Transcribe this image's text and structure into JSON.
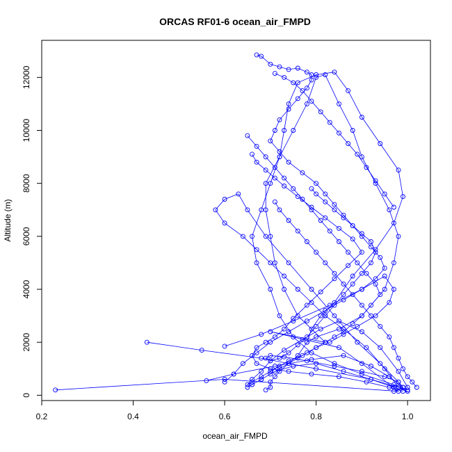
{
  "chart_data": {
    "type": "line",
    "title": "ORCAS RF01-6 ocean_air_FMPD",
    "xlabel": "ocean_air_FMPD",
    "ylabel": "Altitude (m)",
    "xlim": [
      0.2,
      1.05
    ],
    "ylim": [
      -200,
      13400
    ],
    "xticks": [
      "0.2",
      "0.4",
      "0.6",
      "0.8",
      "1.0"
    ],
    "xtick_values": [
      0.2,
      0.4,
      0.6,
      0.8,
      1.0
    ],
    "yticks": [
      "0",
      "2000",
      "4000",
      "6000",
      "8000",
      "10000",
      "12000"
    ],
    "ytick_values": [
      0,
      2000,
      4000,
      6000,
      8000,
      10000,
      12000
    ],
    "grid": false,
    "legend": "none",
    "series_color": "#0000ff",
    "marker": "open-circle",
    "series": [
      {
        "x": [
          0.23,
          0.6,
          0.98,
          0.9,
          0.85,
          0.7,
          0.82,
          0.76,
          0.73,
          0.71,
          0.7,
          0.69,
          0.69,
          0.72,
          0.73,
          0.74,
          0.76,
          0.8,
          0.84,
          0.87,
          0.9,
          0.94,
          0.98,
          0.99,
          0.97,
          0.93,
          0.88,
          0.84,
          0.81,
          0.79,
          0.78,
          0.76,
          0.74,
          0.72,
          0.71,
          0.7,
          0.7,
          0.69
        ],
        "y": [
          200,
          600,
          150,
          1200,
          1800,
          2400,
          2000,
          3000,
          4000,
          5000,
          6000,
          7000,
          8000,
          9000,
          10000,
          11000,
          11800,
          12100,
          12200,
          11500,
          10500,
          9500,
          8500,
          7500,
          6500,
          5500,
          4500,
          3500,
          3000,
          2500,
          2000,
          1500,
          1200,
          900,
          700,
          500,
          300,
          200
        ]
      },
      {
        "x": [
          0.43,
          0.55,
          0.68,
          0.8,
          0.92,
          1.0,
          0.97,
          0.9,
          0.84,
          0.79,
          0.75,
          0.72,
          0.7,
          0.67,
          0.66,
          0.68,
          0.7,
          0.72,
          0.75,
          0.78,
          0.8,
          0.82,
          0.85,
          0.88,
          0.9,
          0.93,
          0.96,
          0.98,
          0.97,
          0.95,
          0.9,
          0.85,
          0.8,
          0.78
        ],
        "y": [
          2000,
          1700,
          1400,
          1000,
          600,
          200,
          400,
          800,
          1200,
          1600,
          2200,
          3000,
          4000,
          5000,
          6000,
          7000,
          8000,
          9000,
          10000,
          11000,
          12000,
          12100,
          11000,
          10000,
          9000,
          8000,
          7000,
          6000,
          5000,
          4000,
          3000,
          2500,
          2200,
          2000
        ]
      },
      {
        "x": [
          0.56,
          0.62,
          0.71,
          0.79,
          0.86,
          0.92,
          0.96,
          0.99,
          0.98,
          0.94,
          0.89,
          0.84,
          0.79,
          0.74,
          0.69,
          0.65,
          0.63,
          0.6,
          0.58,
          0.6,
          0.64,
          0.67,
          0.7,
          0.73,
          0.76,
          0.79,
          0.82,
          0.86,
          0.91,
          0.95,
          0.98
        ],
        "y": [
          550,
          800,
          1100,
          1350,
          1500,
          1100,
          700,
          300,
          500,
          1200,
          2000,
          3000,
          4000,
          5000,
          6000,
          7000,
          7600,
          7400,
          7000,
          6500,
          6000,
          5500,
          5000,
          4500,
          4000,
          3500,
          3000,
          2500,
          1800,
          1000,
          300
        ]
      },
      {
        "x": [
          0.6,
          0.68,
          0.75,
          0.83,
          0.9,
          0.95,
          0.97,
          0.96,
          0.93,
          0.89,
          0.86,
          0.83,
          0.8,
          0.77,
          0.74,
          0.72,
          0.7,
          0.68,
          0.66,
          0.65,
          0.66,
          0.68,
          0.7,
          0.73,
          0.77,
          0.81,
          0.85,
          0.9,
          0.94,
          0.98,
          1.0
        ],
        "y": [
          1850,
          2300,
          2800,
          3400,
          4000,
          4500,
          4000,
          3500,
          3000,
          2600,
          2300,
          2000,
          1800,
          1500,
          1300,
          1100,
          900,
          700,
          500,
          400,
          600,
          900,
          1300,
          1700,
          2100,
          2500,
          2800,
          2400,
          1800,
          900,
          300
        ]
      },
      {
        "x": [
          0.65,
          0.67,
          0.69,
          0.71,
          0.73,
          0.75,
          0.77,
          0.79,
          0.81,
          0.83,
          0.85,
          0.87,
          0.89,
          0.91,
          0.93,
          0.94,
          0.92,
          0.9,
          0.88,
          0.86,
          0.84,
          0.82,
          0.8,
          0.78,
          0.76,
          0.74,
          0.72,
          0.7,
          0.68,
          0.66,
          0.65,
          0.66,
          0.68,
          0.71,
          0.75,
          0.8,
          0.86,
          0.92,
          0.97,
          1.0
        ],
        "y": [
          9800,
          9400,
          9000,
          8600,
          8200,
          7800,
          7400,
          7000,
          6600,
          6200,
          5800,
          5400,
          5000,
          4600,
          4200,
          3800,
          3400,
          3000,
          2700,
          2400,
          2200,
          2000,
          1800,
          1600,
          1400,
          1200,
          1000,
          800,
          600,
          400,
          300,
          400,
          600,
          900,
          1100,
          1200,
          900,
          600,
          300,
          150
        ]
      },
      {
        "x": [
          0.67,
          0.68,
          0.7,
          0.72,
          0.74,
          0.76,
          0.78,
          0.79,
          0.79,
          0.78,
          0.76,
          0.74,
          0.72,
          0.71,
          0.7,
          0.72,
          0.74,
          0.77,
          0.8,
          0.82,
          0.84,
          0.86,
          0.88,
          0.9,
          0.92,
          0.94,
          0.95,
          0.93,
          0.9,
          0.86,
          0.82,
          0.78,
          0.74,
          0.7,
          0.67,
          0.64,
          0.62,
          0.6
        ],
        "y": [
          12850,
          12800,
          12500,
          12400,
          12300,
          12350,
          12200,
          12100,
          11900,
          11600,
          11200,
          10800,
          10400,
          10000,
          9600,
          9200,
          8800,
          8400,
          8000,
          7600,
          7200,
          6800,
          6400,
          6000,
          5600,
          5200,
          4800,
          4400,
          4000,
          3600,
          3200,
          2800,
          2400,
          2000,
          1600,
          1200,
          800,
          500
        ]
      },
      {
        "x": [
          0.79,
          0.8,
          0.82,
          0.84,
          0.86,
          0.88,
          0.9,
          0.92,
          0.93,
          0.92,
          0.9,
          0.88,
          0.86,
          0.84,
          0.82,
          0.8,
          0.78,
          0.76,
          0.74,
          0.72,
          0.7,
          0.69,
          0.7,
          0.73,
          0.78,
          0.84,
          0.9,
          0.95,
          0.98,
          0.99,
          0.97
        ],
        "y": [
          7800,
          7600,
          7300,
          7000,
          6700,
          6400,
          6100,
          5800,
          5400,
          5000,
          4600,
          4200,
          3800,
          3400,
          3000,
          2600,
          2200,
          1900,
          1600,
          1400,
          1300,
          1400,
          1500,
          1450,
          1300,
          1100,
          900,
          700,
          500,
          300,
          150
        ]
      },
      {
        "x": [
          0.66,
          0.67,
          0.69,
          0.71,
          0.73,
          0.76,
          0.79,
          0.82,
          0.85,
          0.88,
          0.9,
          0.87,
          0.84,
          0.81,
          0.78,
          0.75,
          0.73,
          0.71,
          0.69,
          0.67,
          0.66,
          0.67,
          0.7,
          0.74,
          0.79,
          0.85,
          0.91,
          0.96,
          0.99
        ],
        "y": [
          9100,
          8800,
          8500,
          8200,
          7900,
          7500,
          7100,
          6700,
          6300,
          5900,
          5400,
          4900,
          4400,
          3900,
          3400,
          2900,
          2500,
          2200,
          2000,
          1800,
          1500,
          1200,
          1000,
          900,
          800,
          700,
          500,
          300,
          150
        ]
      },
      {
        "x": [
          0.71,
          0.72,
          0.74,
          0.76,
          0.78,
          0.8,
          0.82,
          0.84,
          0.86,
          0.88,
          0.9,
          0.92,
          0.94,
          0.96,
          0.97,
          0.98,
          0.99,
          1.0,
          1.01,
          1.02
        ],
        "y": [
          7300,
          7000,
          6600,
          6200,
          5800,
          5400,
          5000,
          4600,
          4200,
          3800,
          3400,
          3000,
          2600,
          2200,
          1800,
          1400,
          1000,
          700,
          500,
          300
        ]
      },
      {
        "x": [
          0.71,
          0.73,
          0.75,
          0.77,
          0.79,
          0.81,
          0.83,
          0.85,
          0.87,
          0.89,
          0.91,
          0.93,
          0.95,
          0.97
        ],
        "y": [
          12150,
          12000,
          11800,
          11500,
          11100,
          10700,
          10300,
          9900,
          9500,
          9100,
          8600,
          8100,
          7600,
          7100
        ]
      }
    ]
  }
}
